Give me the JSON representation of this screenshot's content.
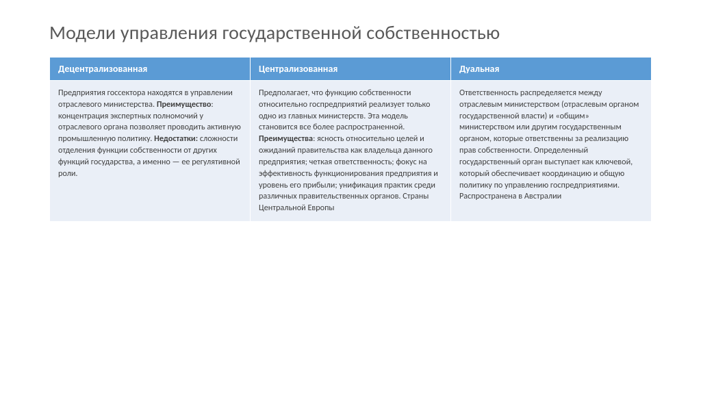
{
  "title": "Модели управления государственной собственностью",
  "table": {
    "columns": [
      "Децентрализованная",
      "Централизованная",
      "Дуальная"
    ],
    "cells": {
      "c0_a": "Предприятия госсектора находятся в управлении отраслевого министерства. ",
      "c0_b_label": "Преимущество",
      "c0_b": ": концентрация экспертных полномочий у отраслевого органа позволяет проводить активную промышленную политику. ",
      "c0_c_label": "Недостатки:",
      "c0_c": " сложности отделения функции собственности от других функций государства, а именно — ее регулятивной роли.",
      "c1_a": "Предполагает, что функцию собственности относительно госпредприятий реализует только одно из главных министерств. Эта модель становится все более распространенной. ",
      "c1_b_label": "Преимущества",
      "c1_b": ": ясность относительно целей и ожиданий правительства как владельца данного предприятия; четкая ответственность; фокус на эффективность функционирования предприятия и уровень его прибыли; унификация практик среди различных правительственных органов. Страны Центральной Европы",
      "c2": "Ответственность распределяется между отраслевым министерством (отраслевым органом государственной власти) и «общим» министерством или другим государственным органом, которые ответственны за реализацию прав собственности. Определенный государственный орган выступает как ключевой, который обеспечивает координацию и общую политику по управлению госпредприятиями. Распространена в Австралии"
    }
  },
  "colors": {
    "header_bg": "#5b9bd5",
    "header_text": "#ffffff",
    "cell_bg": "#eaeff7",
    "cell_text": "#404040",
    "title_color": "#595959"
  },
  "fontsizes": {
    "title": 28,
    "th": 14,
    "td": 12.2
  }
}
